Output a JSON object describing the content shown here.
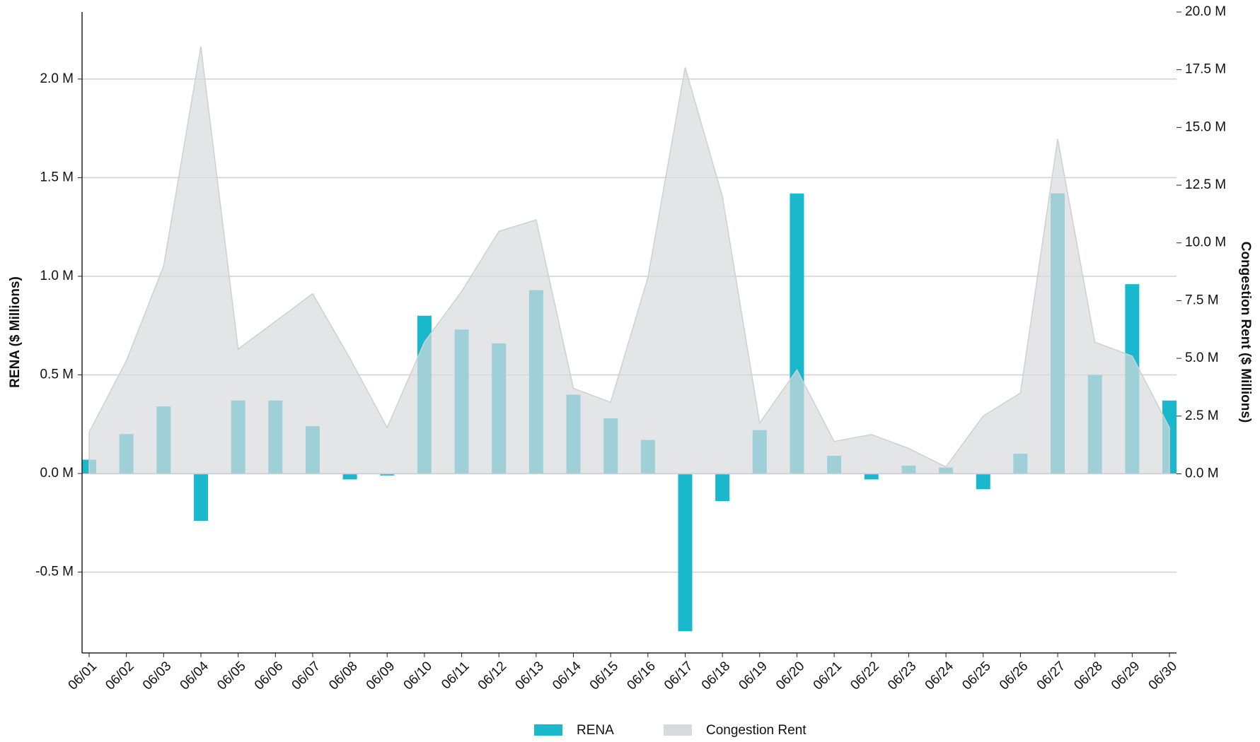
{
  "chart_data": {
    "type": "bar",
    "categories": [
      "06/01",
      "06/02",
      "06/03",
      "06/04",
      "06/05",
      "06/06",
      "06/07",
      "06/08",
      "06/09",
      "06/10",
      "06/11",
      "06/12",
      "06/13",
      "06/14",
      "06/15",
      "06/16",
      "06/17",
      "06/18",
      "06/19",
      "06/20",
      "06/21",
      "06/22",
      "06/23",
      "06/24",
      "06/25",
      "06/26",
      "06/27",
      "06/28",
      "06/29",
      "06/30"
    ],
    "y_label": "RENA ($ Millions)",
    "y2_label": "Congestion Rent ($ Millions)",
    "series": [
      {
        "name": "RENA",
        "type": "bar",
        "color": "#1ab8cc",
        "values": [
          0.07,
          0.2,
          0.34,
          -0.24,
          0.37,
          0.37,
          0.24,
          -0.03,
          -0.01,
          0.8,
          0.73,
          0.66,
          0.93,
          0.4,
          0.28,
          0.17,
          -0.8,
          -0.14,
          0.22,
          1.42,
          0.09,
          -0.03,
          0.04,
          0.03,
          -0.08,
          0.1,
          1.42,
          0.5,
          0.96,
          0.37
        ]
      },
      {
        "name": "Congestion Rent",
        "type": "area",
        "axis": "y2",
        "color": "#d9dadd",
        "values": [
          1.8,
          4.9,
          9.0,
          18.5,
          5.4,
          6.6,
          7.8,
          5.0,
          2.0,
          5.7,
          7.9,
          10.5,
          11.0,
          3.7,
          3.1,
          8.5,
          17.6,
          12.0,
          2.2,
          4.5,
          1.4,
          1.7,
          1.1,
          0.3,
          2.5,
          3.5,
          14.5,
          5.7,
          5.1,
          2.0
        ]
      }
    ],
    "ylim": [
      -0.91,
      2.34
    ],
    "yticks": [
      {
        "value": -0.5,
        "label": "-0.5 M"
      },
      {
        "value": 0,
        "label": "0.0 M"
      },
      {
        "value": 0.5,
        "label": "0.5 M"
      },
      {
        "value": 1,
        "label": "1.0 M"
      },
      {
        "value": 1.5,
        "label": "1.5 M"
      },
      {
        "value": 2,
        "label": "2.0 M"
      }
    ],
    "y2lim": [
      -7.76,
      20
    ],
    "y2ticks": [
      {
        "value": 0,
        "label": "0.0 M"
      },
      {
        "value": 2.5,
        "label": "2.5 M"
      },
      {
        "value": 5,
        "label": "5.0 M"
      },
      {
        "value": 7.5,
        "label": "7.5 M"
      },
      {
        "value": 10,
        "label": "10.0 M"
      },
      {
        "value": 12.5,
        "label": "12.5 M"
      },
      {
        "value": 15,
        "label": "15.0 M"
      },
      {
        "value": 17.5,
        "label": "17.5 M"
      },
      {
        "value": 20,
        "label": "20.0 M"
      }
    ],
    "grid": true,
    "legend": "bottom"
  }
}
